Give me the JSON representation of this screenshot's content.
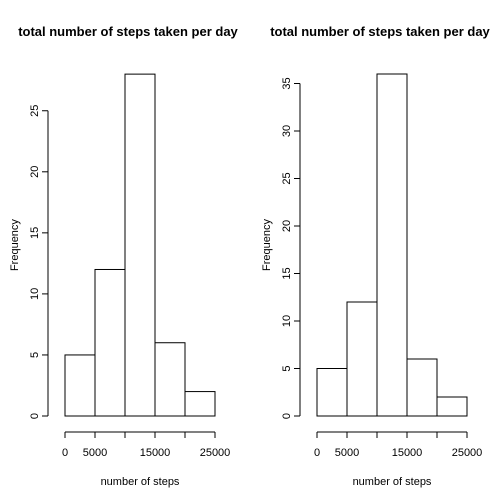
{
  "chart_data": [
    {
      "type": "bar",
      "title": "total number of steps taken per day",
      "xlabel": "number of steps",
      "ylabel": "Frequency",
      "bins": [
        [
          0,
          5000
        ],
        [
          5000,
          10000
        ],
        [
          10000,
          15000
        ],
        [
          15000,
          20000
        ],
        [
          20000,
          25000
        ]
      ],
      "values": [
        5,
        12,
        28,
        6,
        2
      ],
      "x_ticks": [
        0,
        5000,
        10000,
        15000,
        20000,
        25000
      ],
      "x_tick_labels": [
        "0",
        "5000",
        "",
        "15000",
        "",
        "25000"
      ],
      "y_ticks": [
        0,
        5,
        10,
        15,
        20,
        25
      ],
      "ylim": [
        0,
        28
      ]
    },
    {
      "type": "bar",
      "title": "total number of steps taken per day",
      "xlabel": "number of steps",
      "ylabel": "Frequency",
      "bins": [
        [
          0,
          5000
        ],
        [
          5000,
          10000
        ],
        [
          10000,
          15000
        ],
        [
          15000,
          20000
        ],
        [
          20000,
          25000
        ]
      ],
      "values": [
        5,
        12,
        36,
        6,
        2
      ],
      "x_ticks": [
        0,
        5000,
        10000,
        15000,
        20000,
        25000
      ],
      "x_tick_labels": [
        "0",
        "5000",
        "",
        "15000",
        "",
        "25000"
      ],
      "y_ticks": [
        0,
        5,
        10,
        15,
        20,
        25,
        30,
        35
      ],
      "ylim": [
        0,
        36
      ]
    }
  ]
}
